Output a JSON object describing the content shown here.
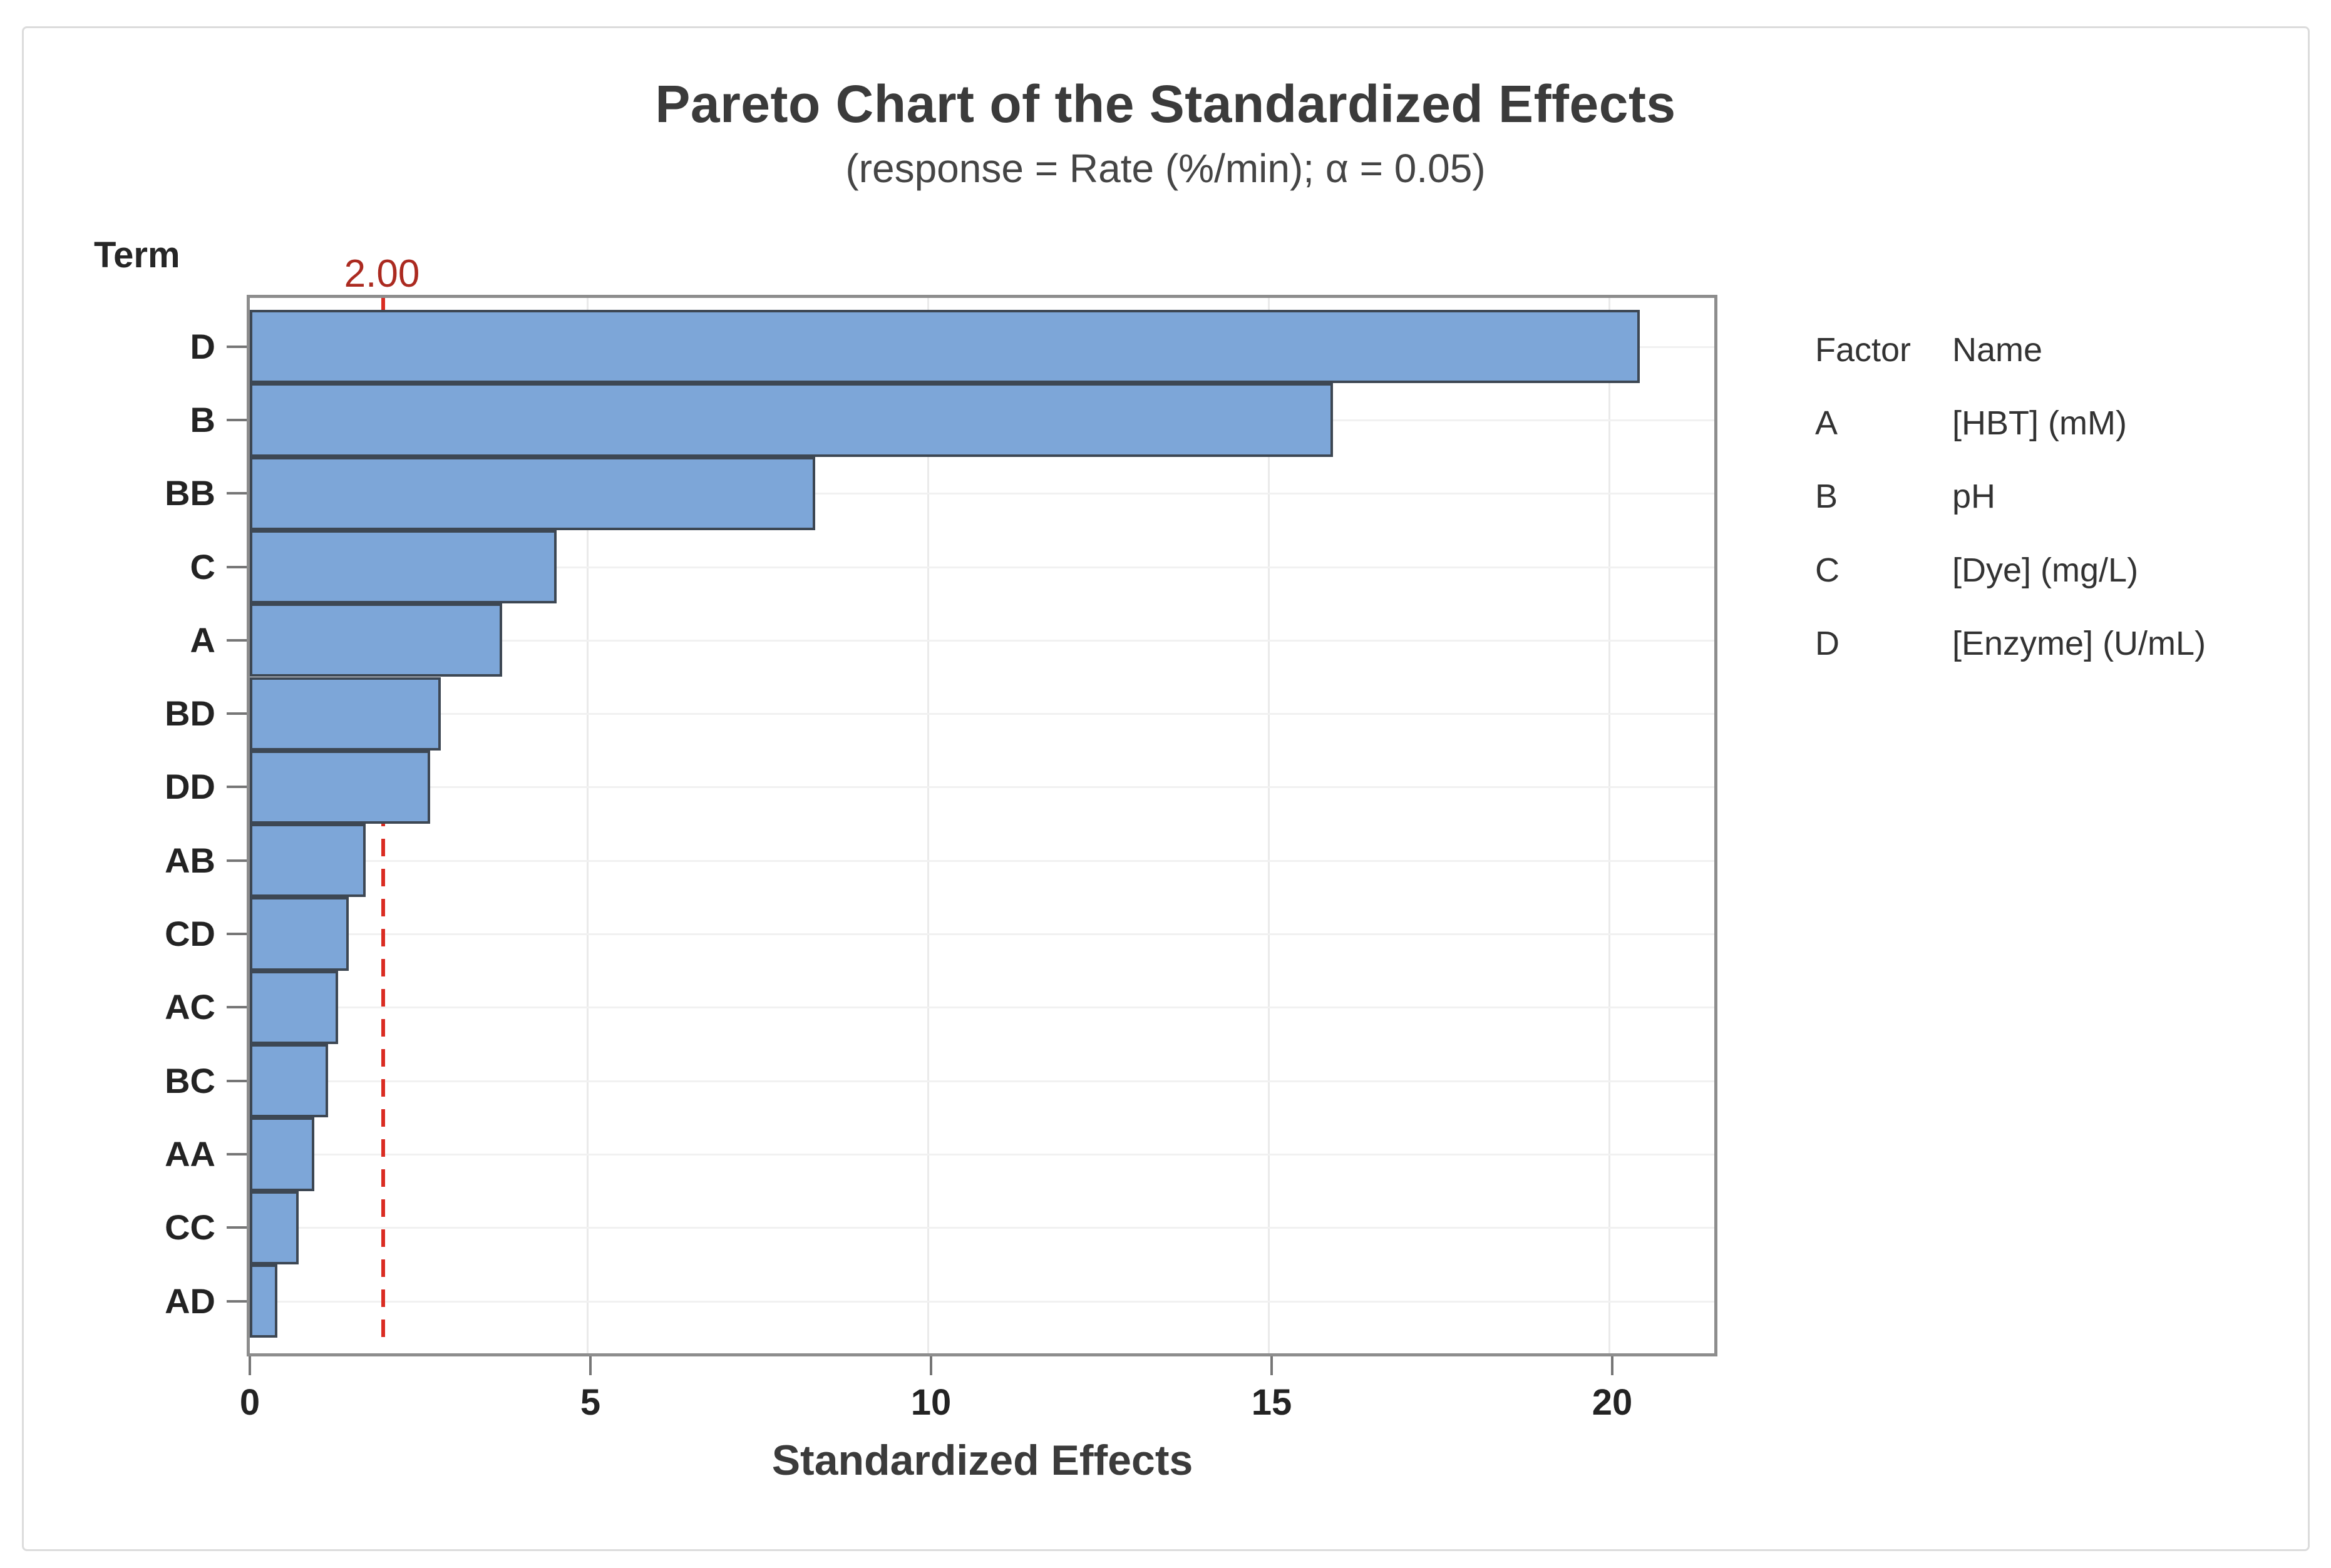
{
  "chart_data": {
    "type": "bar",
    "orientation": "horizontal",
    "title": "Pareto Chart of the Standardized Effects",
    "subtitle": "(response = Rate (%/min); α = 0.05)",
    "xlabel": "Standardized Effects",
    "ylabel": "Term",
    "categories": [
      "D",
      "B",
      "BB",
      "C",
      "A",
      "BD",
      "DD",
      "AB",
      "CD",
      "AC",
      "BC",
      "AA",
      "CC",
      "AD"
    ],
    "values": [
      20.4,
      15.9,
      8.3,
      4.5,
      3.7,
      2.8,
      2.65,
      1.7,
      1.45,
      1.3,
      1.15,
      0.95,
      0.72,
      0.4
    ],
    "x_ticks": [
      0,
      5,
      10,
      15,
      20
    ],
    "xlim": [
      0,
      21.6
    ],
    "grid": {
      "vertical_at_ticks": true,
      "horizontal_at_categories": true
    },
    "reference_line": {
      "value": 2.0,
      "label": "2.00"
    },
    "legend": {
      "position": "right-top",
      "header": {
        "factor": "Factor",
        "name": "Name"
      },
      "rows": [
        {
          "factor": "A",
          "name": "[HBT] (mM)"
        },
        {
          "factor": "B",
          "name": "pH"
        },
        {
          "factor": "C",
          "name": "[Dye] (mg/L)"
        },
        {
          "factor": "D",
          "name": "[Enzyme] (U/mL)"
        }
      ]
    },
    "colors": {
      "bar_fill": "#7da6d8",
      "bar_border": "#3d4753",
      "reference_line": "#da2c22",
      "reference_label_text": "#ab2a20",
      "plot_frame": "#8d8d8d",
      "title_text": "#3b3b3b",
      "tick_label_text": "#232323",
      "gridline": "#eaeaea"
    }
  }
}
